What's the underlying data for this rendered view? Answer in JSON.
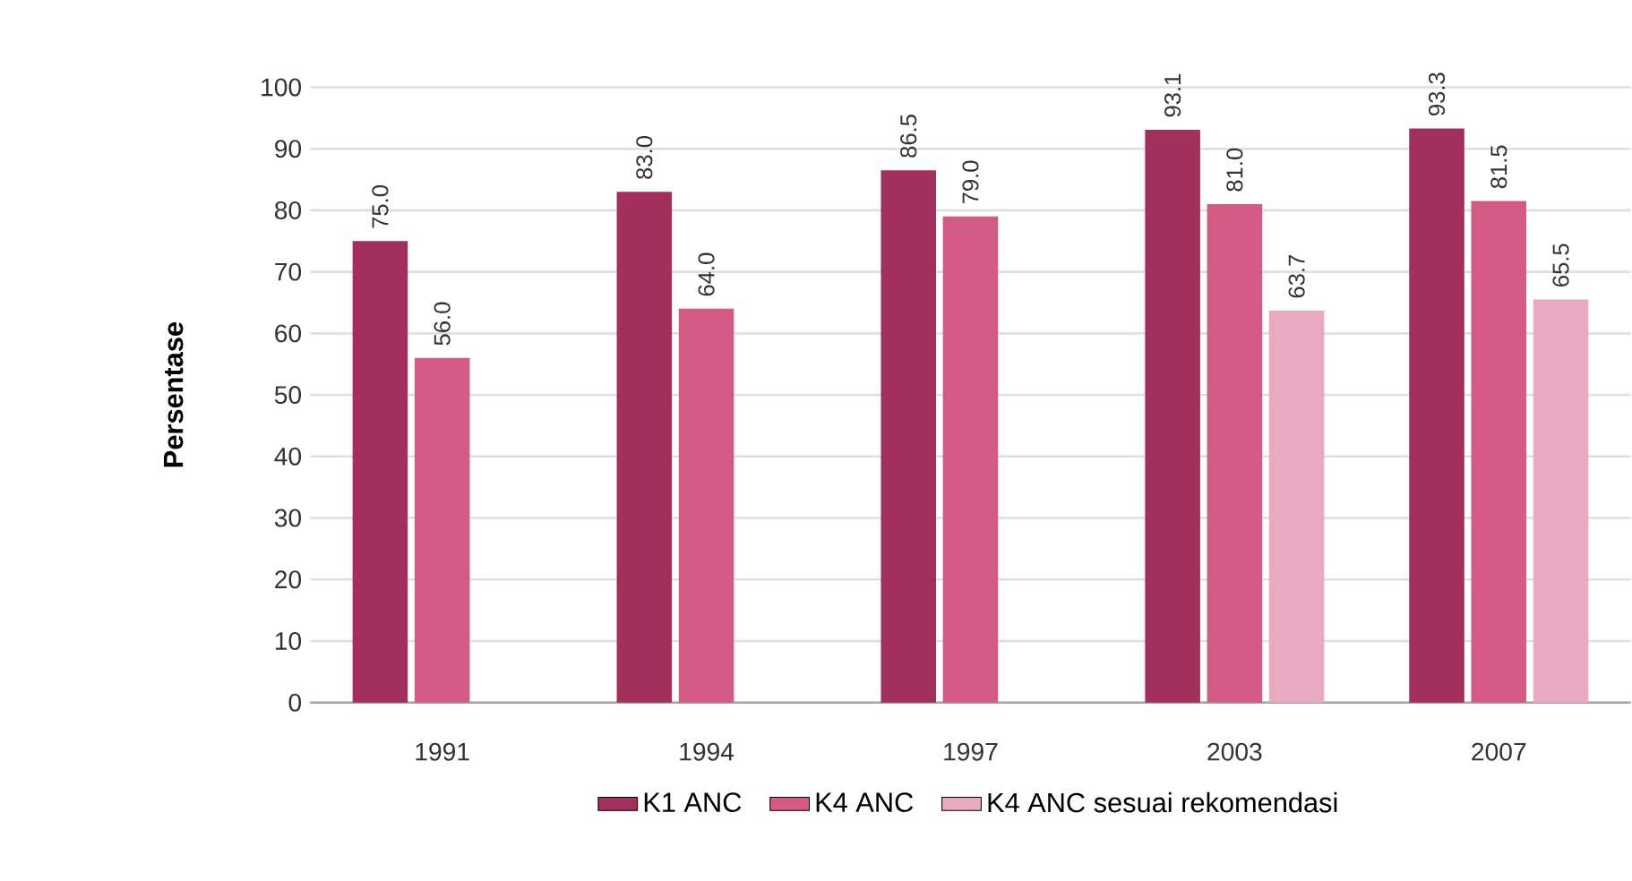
{
  "chart_data": {
    "type": "bar",
    "ylabel": "Persentase",
    "categories": [
      "1991",
      "1994",
      "1997",
      "2003",
      "2007"
    ],
    "series": [
      {
        "name": "K1 ANC",
        "color": "#a3305c",
        "values": [
          75.0,
          83.0,
          86.5,
          93.1,
          93.3
        ],
        "value_labels": [
          "75.0",
          "83.0",
          "86.5",
          "93.1",
          "93.3"
        ]
      },
      {
        "name": "K4 ANC",
        "color": "#d35a84",
        "values": [
          56.0,
          64.0,
          79.0,
          81.0,
          81.5
        ],
        "value_labels": [
          "56.0",
          "64.0",
          "79.0",
          "81.0",
          "81.5"
        ]
      },
      {
        "name": "K4 ANC sesuai rekomendasi",
        "color": "#e8aac0",
        "values": [
          null,
          null,
          null,
          63.7,
          65.5
        ],
        "value_labels": [
          null,
          null,
          null,
          "63.7",
          "65.5"
        ]
      }
    ],
    "ylim": [
      0,
      100
    ],
    "yticks": [
      0,
      10,
      20,
      30,
      40,
      50,
      60,
      70,
      80,
      90,
      100
    ],
    "grid": "y",
    "legend": "bottom"
  }
}
